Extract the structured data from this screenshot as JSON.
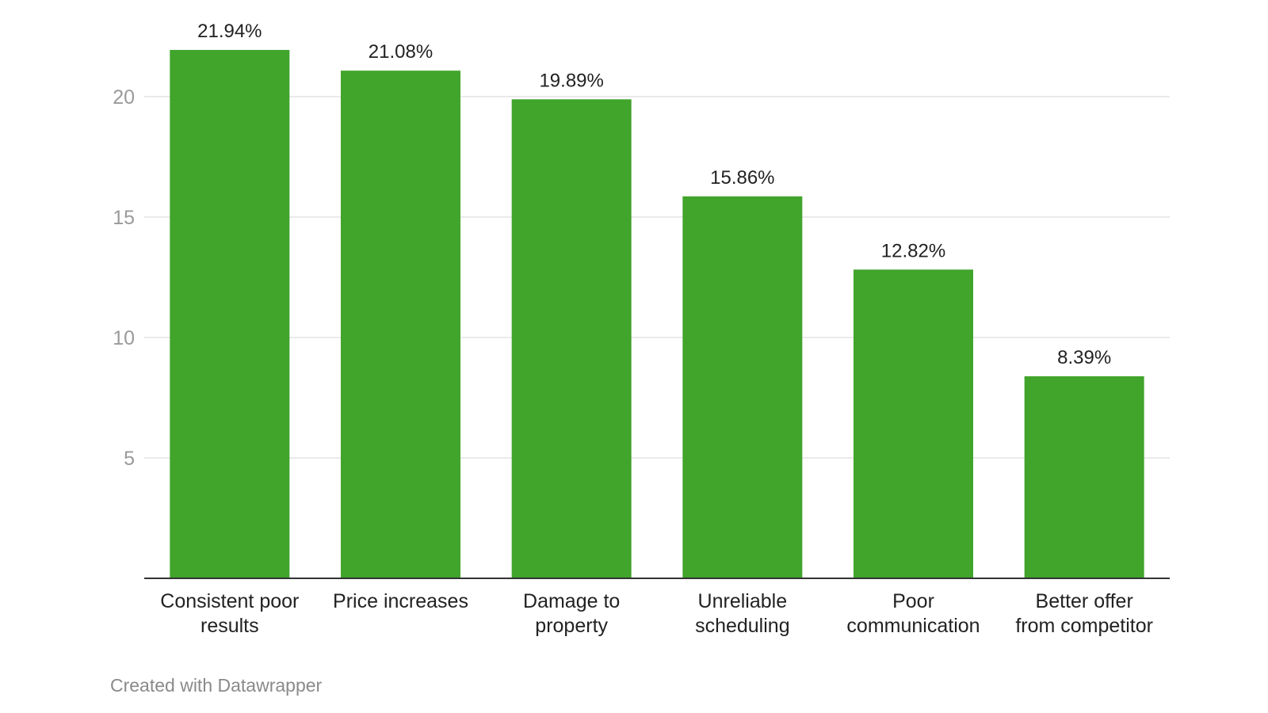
{
  "chart_data": {
    "type": "bar",
    "categories": [
      [
        "Consistent poor",
        "results"
      ],
      [
        "Price increases"
      ],
      [
        "Damage to",
        "property"
      ],
      [
        "Unreliable",
        "scheduling"
      ],
      [
        "Poor",
        "communication"
      ],
      [
        "Better offer",
        "from competitor"
      ]
    ],
    "values": [
      21.94,
      21.08,
      19.89,
      15.86,
      12.82,
      8.39
    ],
    "data_labels": [
      "21.94%",
      "21.08%",
      "19.89%",
      "15.86%",
      "12.82%",
      "8.39%"
    ],
    "y_ticks": [
      5,
      10,
      15,
      20
    ],
    "ylim": [
      0,
      22.5
    ],
    "grid": true,
    "legend": "none",
    "bar_color": "#41a42b"
  },
  "footer": {
    "credit": "Created with Datawrapper"
  }
}
